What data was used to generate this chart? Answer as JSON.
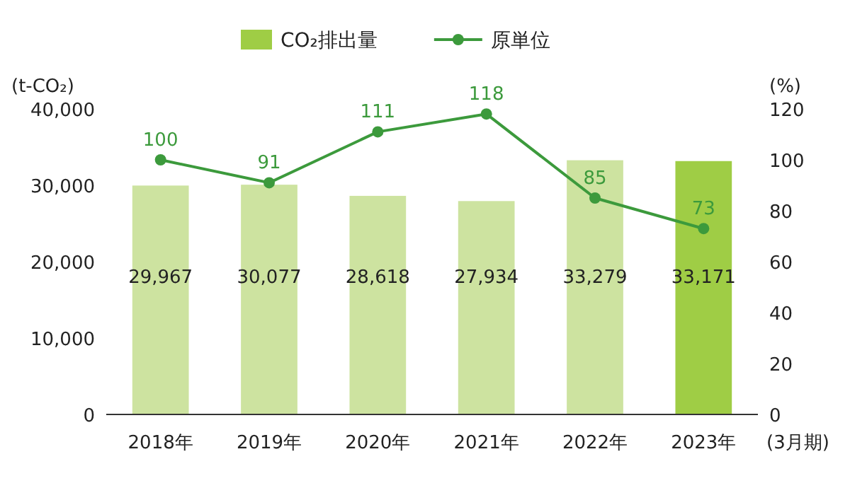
{
  "chart_data": {
    "type": "bar",
    "categories": [
      "2018年",
      "2019年",
      "2020年",
      "2021年",
      "2022年",
      "2023年"
    ],
    "xlabel": "(3月期)",
    "ylabel": "(t-CO₂)",
    "y2label": "(%)",
    "series": [
      {
        "name": "CO₂排出量",
        "color": "#9fcd45",
        "colors": [
          "#cde3a0",
          "#cde3a0",
          "#cde3a0",
          "#cde3a0",
          "#cde3a0",
          "#9fcd45"
        ],
        "values": [
          29967,
          30077,
          28618,
          27934,
          33279,
          33171
        ],
        "value_labels": [
          "29,967",
          "30,077",
          "28,618",
          "27,934",
          "33,279",
          "33,171"
        ]
      },
      {
        "name": "原単位",
        "type": "line",
        "axis": "y2",
        "color": "#3c9a3c",
        "values": [
          100,
          91,
          111,
          118,
          85,
          73
        ]
      }
    ],
    "ylim": [
      0,
      40000
    ],
    "yticks": [
      0,
      {
        "value": 10000,
        "label": "10,000"
      },
      {
        "value": 20000,
        "label": "20,000"
      },
      {
        "value": 30000,
        "label": "30,000"
      },
      {
        "value": 40000,
        "label": "40,000"
      }
    ],
    "y2lim": [
      0,
      120
    ],
    "y2ticks": [
      0,
      20,
      40,
      60,
      80,
      100,
      120
    ],
    "data_labels": true,
    "legend": "top",
    "marker": "circle",
    "grid": false
  }
}
